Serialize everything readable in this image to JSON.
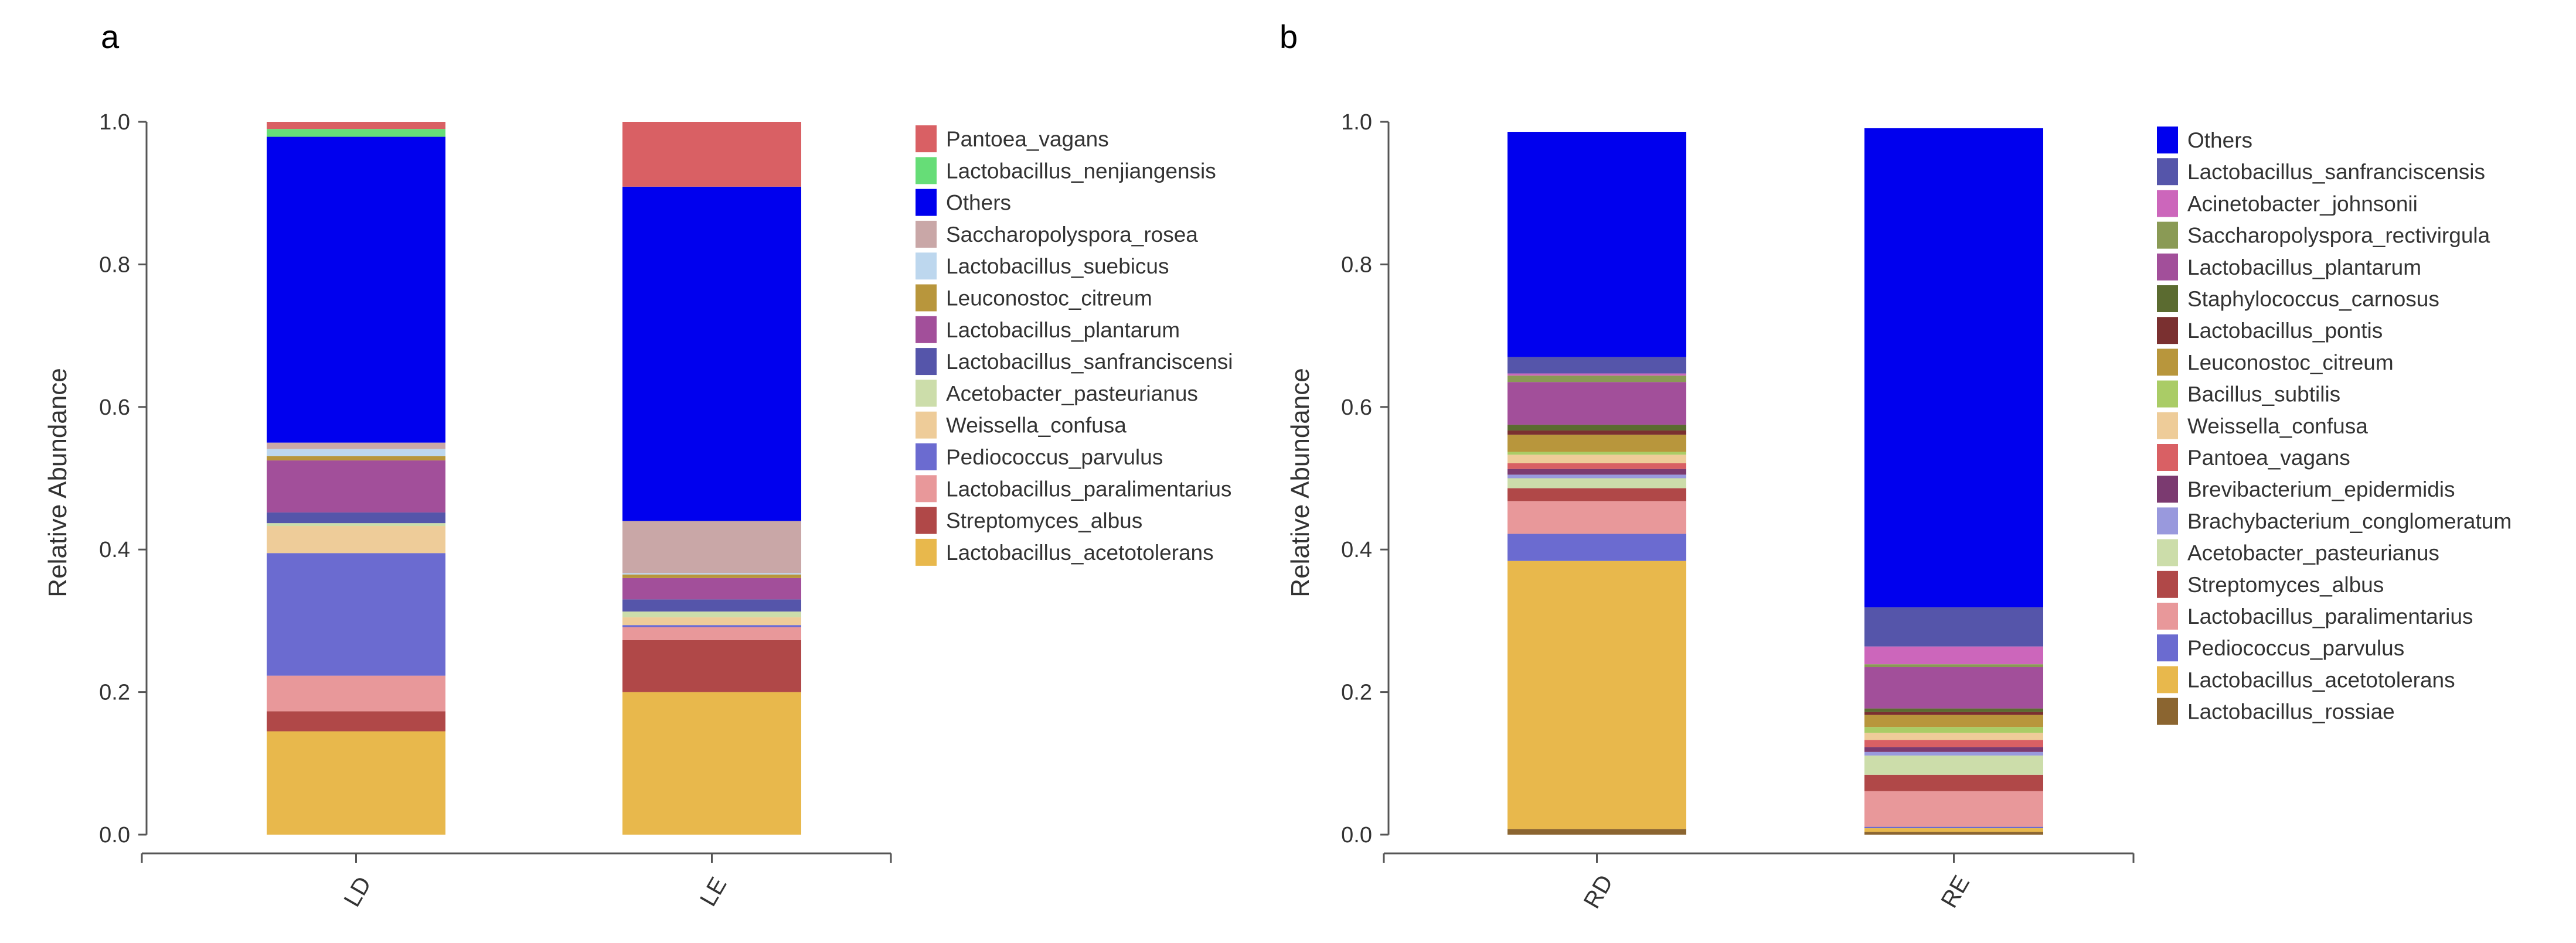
{
  "chart_data": [
    {
      "panel": "a",
      "type": "bar",
      "stacked": true,
      "ylabel": "Relative Abundance",
      "ylim": [
        0,
        1
      ],
      "yticks": [
        "0.0",
        "0.2",
        "0.4",
        "0.6",
        "0.8",
        "1.0"
      ],
      "categories": [
        "LD",
        "LE"
      ],
      "legend_position": "right",
      "series": [
        {
          "name": "Lactobacillus_acetotolerans",
          "color": "#E8B84C",
          "values": [
            0.145,
            0.2
          ]
        },
        {
          "name": "Streptomyces_albus",
          "color": "#B04848",
          "values": [
            0.028,
            0.073
          ]
        },
        {
          "name": "Lactobacillus_paralimentarius",
          "color": "#E8989A",
          "values": [
            0.05,
            0.018
          ]
        },
        {
          "name": "Pediococcus_parvulus",
          "color": "#6B6BD0",
          "values": [
            0.172,
            0.003
          ]
        },
        {
          "name": "Weissella_confusa",
          "color": "#EECC99",
          "values": [
            0.038,
            0.011
          ]
        },
        {
          "name": "Acetobacter_pasteurianus",
          "color": "#CCDDAA",
          "values": [
            0.004,
            0.008
          ]
        },
        {
          "name": "Lactobacillus_sanfranciscensi",
          "color": "#5555AA",
          "values": [
            0.015,
            0.017
          ]
        },
        {
          "name": "Lactobacillus_plantarum",
          "color": "#A24F9A",
          "values": [
            0.073,
            0.03
          ]
        },
        {
          "name": "Leuconostoc_citreum",
          "color": "#B8963C",
          "values": [
            0.006,
            0.005
          ]
        },
        {
          "name": "Lactobacillus_suebicus",
          "color": "#BDD7EE",
          "values": [
            0.01,
            0.002
          ]
        },
        {
          "name": "Saccharopolyspora_rosea",
          "color": "#C9A7A7",
          "values": [
            0.009,
            0.073
          ]
        },
        {
          "name": "Others",
          "color": "#0000EE",
          "values": [
            0.429,
            0.469
          ]
        },
        {
          "name": "Lactobacillus_nenjiangensis",
          "color": "#66DD77",
          "values": [
            0.011,
            0.0
          ]
        },
        {
          "name": "Pantoea_vagans",
          "color": "#D96064",
          "values": [
            0.01,
            0.091
          ]
        }
      ],
      "legend": [
        "Pantoea_vagans",
        "Lactobacillus_nenjiangensis",
        "Others",
        "Saccharopolyspora_rosea",
        "Lactobacillus_suebicus",
        "Leuconostoc_citreum",
        "Lactobacillus_plantarum",
        "Lactobacillus_sanfranciscensi",
        "Acetobacter_pasteurianus",
        "Weissella_confusa",
        "Pediococcus_parvulus",
        "Lactobacillus_paralimentarius",
        "Streptomyces_albus",
        "Lactobacillus_acetotolerans"
      ]
    },
    {
      "panel": "b",
      "type": "bar",
      "stacked": true,
      "ylabel": "Relative Abundance",
      "ylim": [
        0,
        1
      ],
      "yticks": [
        "0.0",
        "0.2",
        "0.4",
        "0.6",
        "0.8",
        "1.0"
      ],
      "categories": [
        "RD",
        "RE"
      ],
      "legend_position": "right",
      "series": [
        {
          "name": "Lactobacillus_rossiae",
          "color": "#8B6530",
          "values": [
            0.008,
            0.004
          ]
        },
        {
          "name": "Lactobacillus_acetotolerans",
          "color": "#E8B84C",
          "values": [
            0.376,
            0.005
          ]
        },
        {
          "name": "Pediococcus_parvulus",
          "color": "#6B6BD0",
          "values": [
            0.038,
            0.002
          ]
        },
        {
          "name": "Lactobacillus_paralimentarius",
          "color": "#E8989A",
          "values": [
            0.046,
            0.05
          ]
        },
        {
          "name": "Streptomyces_albus",
          "color": "#B04848",
          "values": [
            0.018,
            0.023
          ]
        },
        {
          "name": "Acetobacter_pasteurianus",
          "color": "#CCDDAA",
          "values": [
            0.014,
            0.027
          ]
        },
        {
          "name": "Brachybacterium_conglomeratum",
          "color": "#9999DD",
          "values": [
            0.005,
            0.005
          ]
        },
        {
          "name": "Brevibacterium_epidermidis",
          "color": "#7B3A70",
          "values": [
            0.008,
            0.007
          ]
        },
        {
          "name": "Pantoea_vagans",
          "color": "#D96064",
          "values": [
            0.008,
            0.01
          ]
        },
        {
          "name": "Weissella_confusa",
          "color": "#EECC99",
          "values": [
            0.012,
            0.01
          ]
        },
        {
          "name": "Bacillus_subtilis",
          "color": "#AACC66",
          "values": [
            0.004,
            0.008
          ]
        },
        {
          "name": "Leuconostoc_citreum",
          "color": "#B8963C",
          "values": [
            0.024,
            0.017
          ]
        },
        {
          "name": "Lactobacillus_pontis",
          "color": "#7A3030",
          "values": [
            0.006,
            0.004
          ]
        },
        {
          "name": "Staphylococcus_carnosus",
          "color": "#5B6B30",
          "values": [
            0.008,
            0.005
          ]
        },
        {
          "name": "Lactobacillus_plantarum",
          "color": "#A24F9A",
          "values": [
            0.06,
            0.058
          ]
        },
        {
          "name": "Saccharopolyspora_rectivirgula",
          "color": "#8A9A55",
          "values": [
            0.009,
            0.004
          ]
        },
        {
          "name": "Acinetobacter_johnsonii",
          "color": "#CC66BB",
          "values": [
            0.003,
            0.025
          ]
        },
        {
          "name": "Lactobacillus_sanfranciscensis",
          "color": "#5555AA",
          "values": [
            0.023,
            0.055
          ]
        },
        {
          "name": "Others",
          "color": "#0000EE",
          "values": [
            0.316,
            0.672
          ]
        }
      ],
      "legend": [
        "Others",
        "Lactobacillus_sanfranciscensis",
        "Acinetobacter_johnsonii",
        "Saccharopolyspora_rectivirgula",
        "Lactobacillus_plantarum",
        "Staphylococcus_carnosus",
        "Lactobacillus_pontis",
        "Leuconostoc_citreum",
        "Bacillus_subtilis",
        "Weissella_confusa",
        "Pantoea_vagans",
        "Brevibacterium_epidermidis",
        "Brachybacterium_conglomeratum",
        "Acetobacter_pasteurianus",
        "Streptomyces_albus",
        "Lactobacillus_paralimentarius",
        "Pediococcus_parvulus",
        "Lactobacillus_acetotolerans",
        "Lactobacillus_rossiae"
      ]
    }
  ]
}
